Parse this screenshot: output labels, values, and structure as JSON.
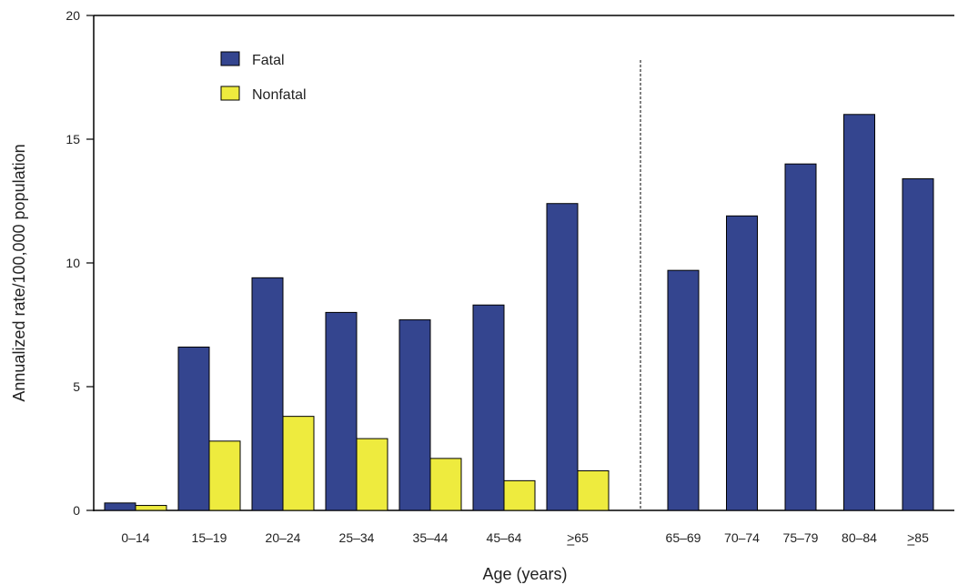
{
  "chart_data": {
    "type": "bar",
    "xlabel": "Age (years)",
    "ylabel": "Annualized rate/100,000 population",
    "ylim": [
      0,
      20
    ],
    "yticks": [
      0,
      5,
      10,
      15,
      20
    ],
    "grid": false,
    "legend_position": "top-left",
    "categories": [
      "0–14",
      "15–19",
      "20–24",
      "25–34",
      "35–44",
      "45–64",
      ">65",
      "65–69",
      "70–74",
      "75–79",
      "80–84",
      ">85"
    ],
    "underlined_symbol_categories": [
      ">65",
      ">85"
    ],
    "series": [
      {
        "name": "Fatal",
        "color": "#34458f",
        "values": [
          0.3,
          6.6,
          9.4,
          8.0,
          7.7,
          8.3,
          12.4,
          9.7,
          11.9,
          14.0,
          16.0,
          13.4
        ]
      },
      {
        "name": "Nonfatal",
        "color": "#eeeb3e",
        "values": [
          0.2,
          2.8,
          3.8,
          2.9,
          2.1,
          1.2,
          1.6,
          null,
          null,
          null,
          null,
          null
        ]
      }
    ],
    "divider_after_category": ">65"
  }
}
